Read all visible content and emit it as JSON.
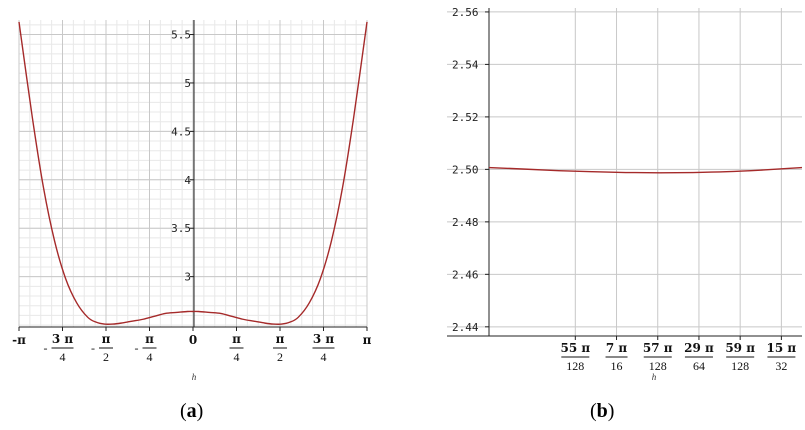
{
  "chart_data": [
    {
      "type": "line",
      "caption": "(a)",
      "caption_letter": "a",
      "xlabel": "h",
      "xlim": [
        -3.14159,
        3.14159
      ],
      "ylim": [
        2.48,
        5.65
      ],
      "y_ticks": [
        {
          "value": 3,
          "label": "3"
        },
        {
          "value": 3.5,
          "label": "3.5"
        },
        {
          "value": 4,
          "label": "4"
        },
        {
          "value": 4.5,
          "label": "4.5"
        },
        {
          "value": 5,
          "label": "5"
        },
        {
          "value": 5.5,
          "label": "5.5"
        }
      ],
      "x_ticks": [
        {
          "value": -3.14159,
          "sign": "-",
          "num": "π",
          "den": ""
        },
        {
          "value": -2.35619,
          "sign": "-",
          "num": "3 π",
          "den": "4"
        },
        {
          "value": -1.5708,
          "sign": "-",
          "num": "π",
          "den": "2"
        },
        {
          "value": -0.7854,
          "sign": "-",
          "num": "π",
          "den": "4"
        },
        {
          "value": 0,
          "sign": "",
          "num": "0",
          "den": ""
        },
        {
          "value": 0.7854,
          "sign": "",
          "num": "π",
          "den": "4"
        },
        {
          "value": 1.5708,
          "sign": "",
          "num": "π",
          "den": "2"
        },
        {
          "value": 2.35619,
          "sign": "",
          "num": "3 π",
          "den": "4"
        },
        {
          "value": 3.14159,
          "sign": "",
          "num": "π",
          "den": ""
        }
      ],
      "series": [
        {
          "color": "#a52a2a",
          "x": [
            -3.1416,
            -2.9,
            -2.7,
            -2.5,
            -2.3,
            -2.1,
            -1.9,
            -1.75,
            -1.6,
            -1.45,
            -1.3,
            -1.1,
            -0.9,
            -0.7,
            -0.5,
            -0.3,
            -0.1,
            0,
            0.1,
            0.3,
            0.5,
            0.7,
            0.9,
            1.1,
            1.3,
            1.45,
            1.6,
            1.75,
            1.9,
            2.1,
            2.3,
            2.5,
            2.7,
            2.9,
            3.1416
          ],
          "y": [
            5.63,
            4.64,
            3.92,
            3.37,
            2.98,
            2.73,
            2.58,
            2.53,
            2.51,
            2.51,
            2.52,
            2.54,
            2.56,
            2.59,
            2.62,
            2.63,
            2.64,
            2.64,
            2.64,
            2.63,
            2.62,
            2.59,
            2.56,
            2.54,
            2.52,
            2.51,
            2.51,
            2.53,
            2.58,
            2.73,
            2.98,
            3.37,
            3.92,
            4.64,
            5.63
          ]
        }
      ]
    },
    {
      "type": "line",
      "caption": "(b)",
      "caption_letter": "b",
      "xlabel": "h",
      "xlim": [
        1.2985,
        1.4849
      ],
      "ylim": [
        2.4365,
        2.5615
      ],
      "y_ticks": [
        {
          "value": 2.44,
          "label": "2.44"
        },
        {
          "value": 2.46,
          "label": "2.46"
        },
        {
          "value": 2.48,
          "label": "2.48"
        },
        {
          "value": 2.5,
          "label": "2.50"
        },
        {
          "value": 2.52,
          "label": "2.52"
        },
        {
          "value": 2.54,
          "label": "2.54"
        },
        {
          "value": 2.56,
          "label": "2.56"
        }
      ],
      "x_ticks": [
        {
          "value": 1.3499,
          "sign": "",
          "num": "55 π",
          "den": "128"
        },
        {
          "value": 1.37445,
          "sign": "",
          "num": "7 π",
          "den": "16"
        },
        {
          "value": 1.39899,
          "sign": "",
          "num": "57 π",
          "den": "128"
        },
        {
          "value": 1.42353,
          "sign": "",
          "num": "29 π",
          "den": "64"
        },
        {
          "value": 1.44808,
          "sign": "",
          "num": "59 π",
          "den": "128"
        },
        {
          "value": 1.47262,
          "sign": "",
          "num": "15 π",
          "den": "32"
        }
      ],
      "series": [
        {
          "color": "#a52a2a",
          "x": [
            1.2985,
            1.32,
            1.34,
            1.36,
            1.38,
            1.4,
            1.42,
            1.44,
            1.46,
            1.4849
          ],
          "y": [
            2.5007,
            2.5001,
            2.4995,
            2.4991,
            2.4988,
            2.4987,
            2.4988,
            2.4991,
            2.4997,
            2.5007
          ]
        }
      ]
    }
  ]
}
